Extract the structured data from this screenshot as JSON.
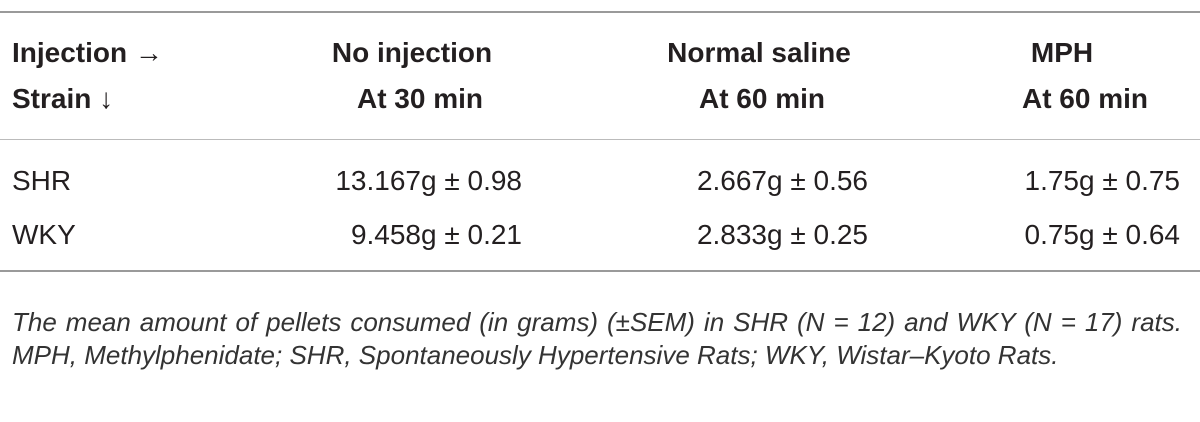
{
  "table": {
    "header": [
      [
        "Injection →",
        "Strain ↓"
      ],
      [
        "No injection",
        "At 30 min"
      ],
      [
        "Normal saline",
        "At 60 min"
      ],
      [
        "MPH",
        "At 60 min"
      ]
    ],
    "rows": [
      [
        "SHR",
        "13.167g ± 0.98",
        "2.667g ± 0.56",
        "1.75g ± 0.75"
      ],
      [
        "WKY",
        "9.458g ± 0.21",
        "2.833g ± 0.25",
        "0.75g ± 0.64"
      ]
    ],
    "caption": "The mean amount of pellets consumed (in grams) (±SEM) in SHR (N = 12) and WKY (N = 17) rats. MPH, Methylphenidate; SHR, Spontaneously Hypertensive Rats; WKY, Wistar–Kyoto Rats."
  }
}
